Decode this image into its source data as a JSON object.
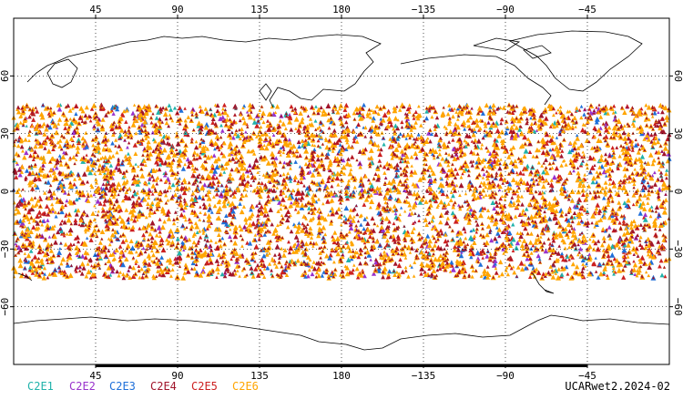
{
  "map": {
    "projection": "cylindrical",
    "lon_range": [
      0,
      360
    ],
    "lat_range": [
      -90,
      90
    ],
    "gridlines": "dotted",
    "lon_tick_labels": [
      "45",
      "90",
      "135",
      "180",
      "−135",
      "−90",
      "−45"
    ],
    "lat_tick_labels": [
      "60",
      "30",
      "0",
      "−30",
      "−60"
    ],
    "observation_band_lat": [
      -45,
      45
    ],
    "observation_marker": "triangle"
  },
  "legend": [
    {
      "label": "C2E1",
      "color": "#20b2aa"
    },
    {
      "label": "C2E2",
      "color": "#9932cc"
    },
    {
      "label": "C2E3",
      "color": "#1e6fd9"
    },
    {
      "label": "C2E4",
      "color": "#a0142a"
    },
    {
      "label": "C2E5",
      "color": "#cc1f1f"
    },
    {
      "label": "C2E6",
      "color": "#ffa500"
    }
  ],
  "footer": {
    "label": "UCARwet2.2024-02"
  },
  "colors": {
    "frame": "#000000",
    "coast": "#000000",
    "grid": "#000000"
  }
}
